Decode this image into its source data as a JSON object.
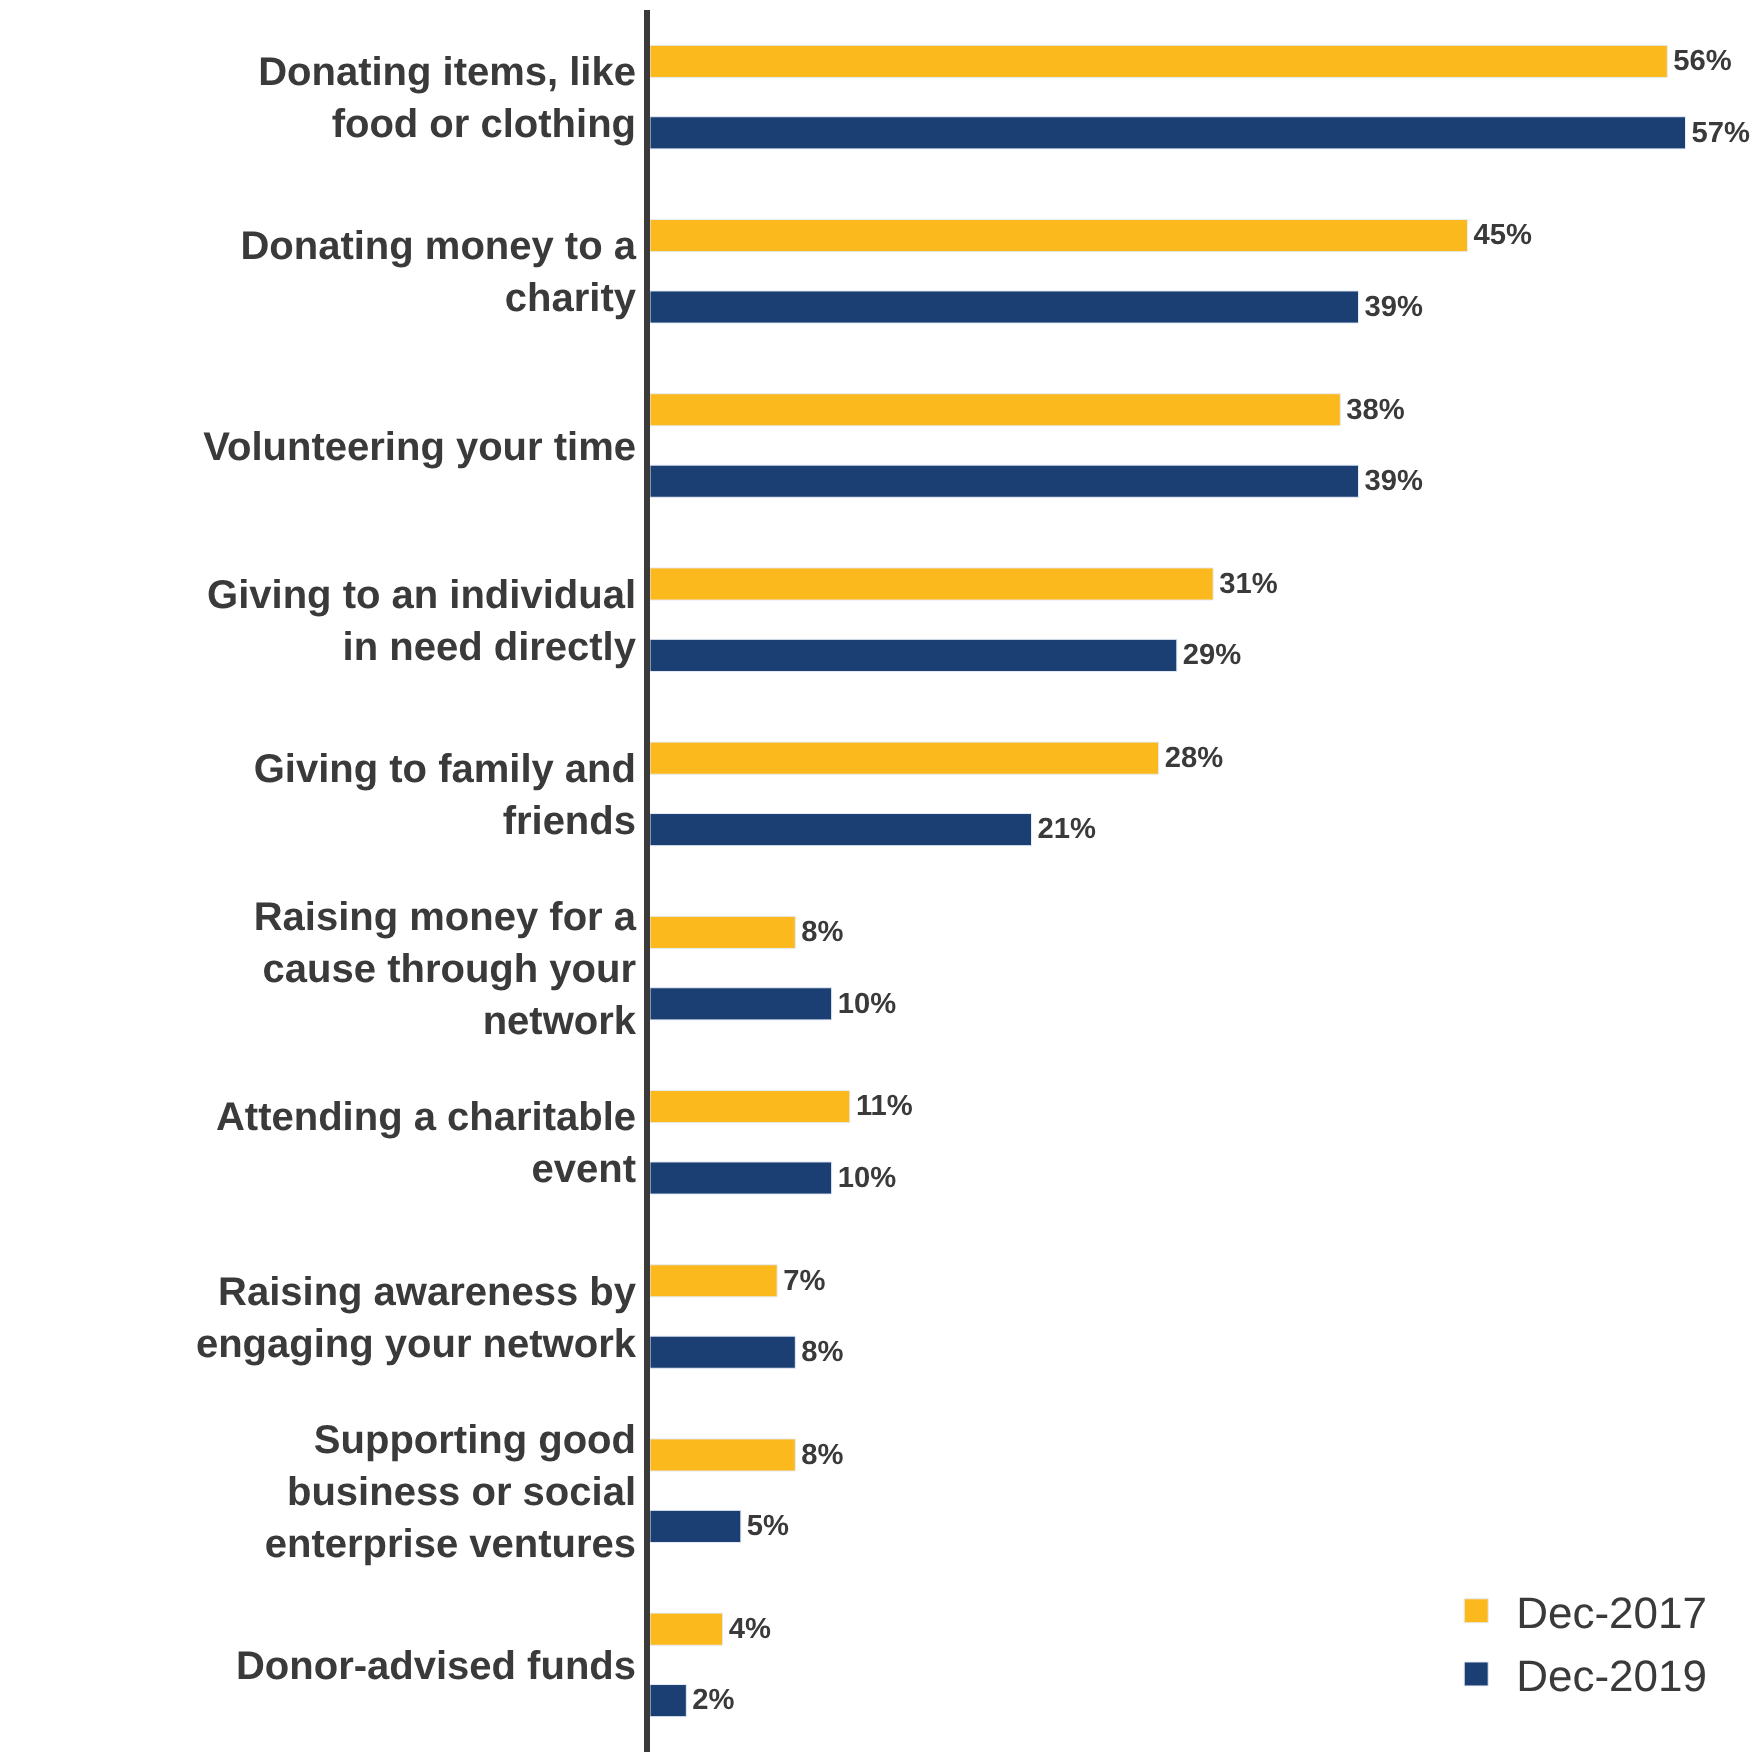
{
  "chart_data": {
    "type": "bar",
    "orientation": "horizontal",
    "categories": [
      "Donating items, like food or clothing",
      "Donating money to a charity",
      "Volunteering your time",
      "Giving to an individual in need directly",
      "Giving to family and friends",
      "Raising money for a cause through your network",
      "Attending a charitable event",
      "Raising awareness by engaging your network",
      "Supporting good business or social enterprise ventures",
      "Donor-advised funds"
    ],
    "series": [
      {
        "name": "Dec-2017",
        "color": "#fbb91e",
        "values": [
          56,
          45,
          38,
          31,
          28,
          8,
          11,
          7,
          8,
          4
        ],
        "value_labels": [
          "56%",
          "45%",
          "38%",
          "31%",
          "28%",
          "8%",
          "11%",
          "7%",
          "8%",
          "4%"
        ]
      },
      {
        "name": "Dec-2019",
        "color": "#1b3f73",
        "values": [
          57,
          39,
          39,
          29,
          21,
          10,
          10,
          8,
          5,
          2
        ],
        "value_labels": [
          "57%",
          "39%",
          "39%",
          "29%",
          "21%",
          "10%",
          "10%",
          "8%",
          "5%",
          "2%"
        ]
      }
    ],
    "tick_labels": "y",
    "legend": "bottom right"
  }
}
